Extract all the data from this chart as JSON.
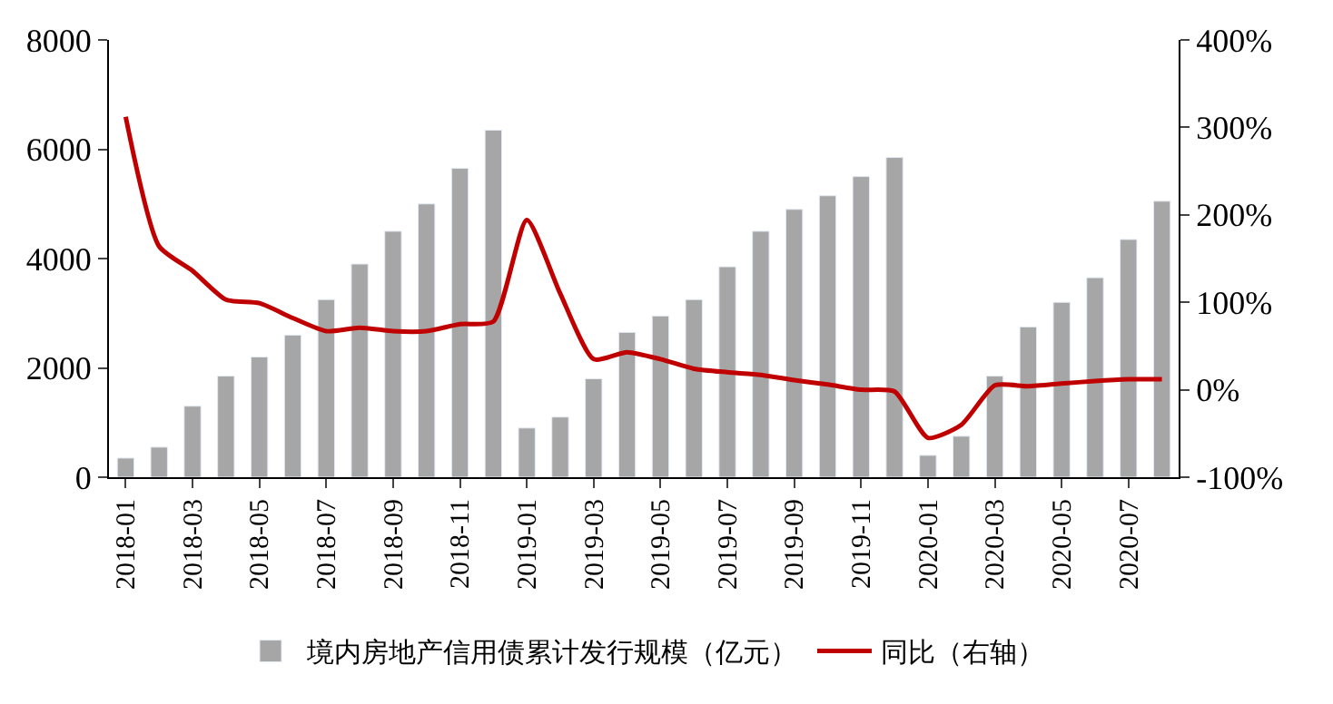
{
  "chart_data": {
    "type": "bar",
    "categories": [
      "2018-01",
      null,
      "2018-03",
      null,
      "2018-05",
      null,
      "2018-07",
      null,
      "2018-09",
      null,
      "2018-11",
      null,
      "2019-01",
      null,
      "2019-03",
      null,
      "2019-05",
      null,
      "2019-07",
      null,
      "2019-09",
      null,
      "2019-11",
      null,
      "2020-01",
      null,
      "2020-03",
      null,
      "2020-05",
      null,
      "2020-07",
      null
    ],
    "series": [
      {
        "name": "境内房地产信用债累计发行规模（亿元）",
        "color": "#a6a6a6",
        "values": [
          350,
          550,
          1300,
          1850,
          2200,
          2600,
          3250,
          3900,
          4500,
          5000,
          5650,
          6350,
          900,
          1100,
          1800,
          2650,
          2950,
          3250,
          3850,
          4500,
          4900,
          5150,
          5500,
          5850,
          400,
          750,
          1850,
          2750,
          3200,
          3650,
          4350,
          5050
        ]
      },
      {
        "name": "同比（右轴）",
        "type": "line",
        "axis": "y2",
        "color": "#c00000",
        "values": [
          312,
          164,
          136,
          103,
          99,
          82,
          67,
          71,
          67,
          67,
          75,
          78,
          194,
          110,
          35,
          43,
          35,
          24,
          20,
          17,
          11,
          6,
          0,
          -2,
          -55,
          -40,
          5,
          4,
          7,
          10,
          12,
          12
        ]
      }
    ],
    "ylim": [
      0,
      8000
    ],
    "yticks": [
      0,
      2000,
      4000,
      6000,
      8000
    ],
    "y2lim": [
      -100,
      400
    ],
    "y2ticks": [
      {
        "value": -100,
        "label": "-100%"
      },
      {
        "value": 0,
        "label": "0%"
      },
      {
        "value": 100,
        "label": "100%"
      },
      {
        "value": 200,
        "label": "200%"
      },
      {
        "value": 300,
        "label": "300%"
      },
      {
        "value": 400,
        "label": "400%"
      }
    ],
    "legend": "bottom",
    "marker": "none",
    "line_style": "solid"
  }
}
